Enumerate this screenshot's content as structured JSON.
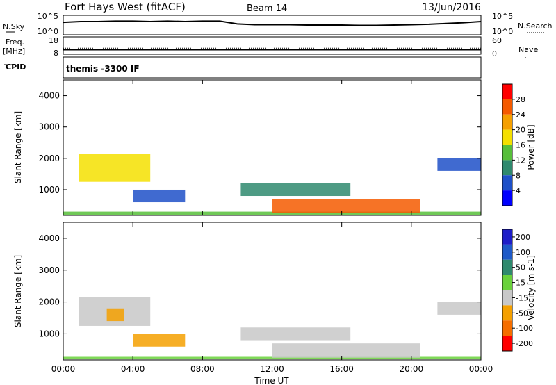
{
  "header": {
    "station": "Fort Hays West (fitACF)",
    "beam": "Beam 14",
    "date": "13/Jun/2016"
  },
  "strip_labels": {
    "nsky": "N.Sky",
    "nsearch": "N.Search",
    "freq": "Freq.",
    "freq_unit": "[MHz]",
    "nave": "Nave",
    "cpid": "CPID",
    "cpid_value": "themis -3300 IF"
  },
  "chart_data": [
    {
      "id": "noise",
      "type": "line",
      "left_ticks": [
        "10^5",
        "10^0"
      ],
      "right_ticks": [
        "10^5",
        "10^0"
      ],
      "x_hours": [
        0,
        1,
        2,
        3,
        4,
        5,
        6,
        7,
        8,
        9,
        10,
        11,
        12,
        13,
        14,
        15,
        16,
        17,
        18,
        19,
        20,
        21,
        22,
        23,
        24
      ],
      "series": [
        {
          "name": "N.Sky",
          "values_log10": [
            3.2,
            3.4,
            3.4,
            3.5,
            3.5,
            3.4,
            3.5,
            3.4,
            3.5,
            3.5,
            2.8,
            2.6,
            2.6,
            2.6,
            2.5,
            2.5,
            2.5,
            2.4,
            2.4,
            2.5,
            2.6,
            2.7,
            2.9,
            3.1,
            3.4
          ]
        }
      ]
    },
    {
      "id": "frequency",
      "type": "line",
      "left_ticks": [
        "18",
        "8"
      ],
      "right_ticks": [
        "60",
        "0"
      ],
      "x_hours": [
        0,
        6,
        12,
        18,
        24
      ],
      "series": [
        {
          "name": "Freq.",
          "values": [
            10.5,
            10.5,
            10.5,
            10.5,
            10.5
          ]
        },
        {
          "name": "Nave",
          "values": [
            21,
            21,
            21,
            21,
            21
          ]
        }
      ]
    },
    {
      "id": "power",
      "type": "heatmap",
      "ylabel": "Slant Range [km]",
      "ylim": [
        180,
        4500
      ],
      "yticks": [
        1000,
        2000,
        3000,
        4000
      ],
      "colorbar": {
        "label": "Power [dB]",
        "ticks": [
          "4",
          "8",
          "12",
          "16",
          "20",
          "24",
          "28"
        ],
        "colors": [
          "#0000ff",
          "#1e50c8",
          "#2f8a6e",
          "#57bf3a",
          "#f5e000",
          "#f5a000",
          "#f55a00",
          "#ff0000"
        ]
      },
      "regions": [
        {
          "t": [
            0.9,
            5.0
          ],
          "r": [
            1250,
            2150
          ],
          "level": 4
        },
        {
          "t": [
            4.0,
            7.0
          ],
          "r": [
            600,
            1000
          ],
          "level": 1
        },
        {
          "t": [
            0,
            24
          ],
          "r": [
            200,
            300
          ],
          "level": 3
        },
        {
          "t": [
            10.2,
            16.5
          ],
          "r": [
            800,
            1200
          ],
          "level": 2
        },
        {
          "t": [
            12,
            20.5
          ],
          "r": [
            250,
            700
          ],
          "level": 6
        },
        {
          "t": [
            21.5,
            24
          ],
          "r": [
            1600,
            2000
          ],
          "level": 1
        }
      ]
    },
    {
      "id": "velocity",
      "type": "heatmap",
      "ylabel": "Slant Range [km]",
      "ylim": [
        180,
        4500
      ],
      "yticks": [
        1000,
        2000,
        3000,
        4000
      ],
      "colorbar": {
        "label": "Velocity [m s-1]",
        "ticks": [
          "200",
          "100",
          "50",
          "15",
          "-15",
          "-50",
          "-100",
          "-200"
        ],
        "colors": [
          "#1e1ec8",
          "#1e5ac8",
          "#2f8a6e",
          "#6ad23c",
          "#c8c8c8",
          "#f5a000",
          "#f56e00",
          "#ff0000"
        ]
      },
      "regions": [
        {
          "t": [
            0.9,
            5.0
          ],
          "r": [
            1250,
            2150
          ],
          "level": 4
        },
        {
          "t": [
            2.5,
            3.5
          ],
          "r": [
            1400,
            1800
          ],
          "level": 5
        },
        {
          "t": [
            4.0,
            7.0
          ],
          "r": [
            600,
            1000
          ],
          "level": 5
        },
        {
          "t": [
            0,
            24
          ],
          "r": [
            200,
            300
          ],
          "level": 3
        },
        {
          "t": [
            10.2,
            16.5
          ],
          "r": [
            800,
            1200
          ],
          "level": 4
        },
        {
          "t": [
            12,
            20.5
          ],
          "r": [
            250,
            700
          ],
          "level": 4
        },
        {
          "t": [
            21.5,
            24
          ],
          "r": [
            1600,
            2000
          ],
          "level": 4
        }
      ]
    }
  ],
  "xaxis": {
    "label": "Time UT",
    "ticks": [
      "00:00",
      "04:00",
      "08:00",
      "12:00",
      "16:00",
      "20:00",
      "00:00"
    ]
  }
}
